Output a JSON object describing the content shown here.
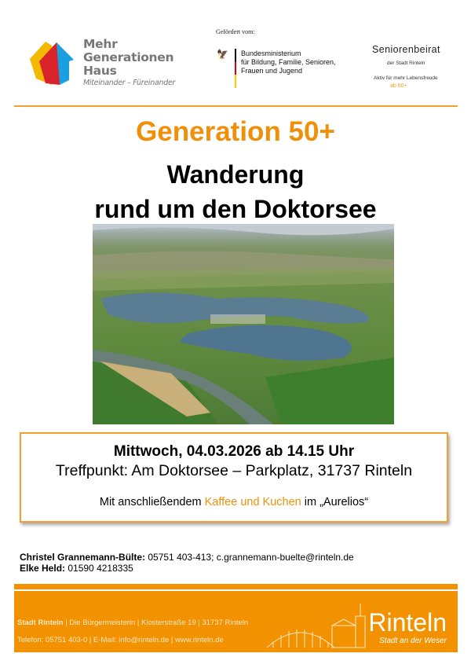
{
  "header": {
    "mgh_logo": {
      "lines": [
        "Mehr",
        "Generationen",
        "Haus"
      ],
      "tagline": "Miteinander – Füreinander"
    },
    "funded_by": "Gefördert vom:",
    "ministry": [
      "Bundesministerium",
      "für Bildung, Familie, Senioren,",
      "Frauen und Jugend"
    ],
    "seniorenbeirat": {
      "title": "Seniorenbeirat",
      "sub": "der Stadt Rinteln",
      "motto": "Aktiv für mehr Lebensfreude",
      "age": "ab 60+"
    }
  },
  "title": "Generation 50+",
  "subtitle_lines": [
    "Wanderung",
    "rund um den Doktorsee"
  ],
  "event": {
    "date": "Mittwoch, 04.03.2026 ab 14.15 Uhr",
    "meeting": "Treffpunkt: Am Doktorsee – Parkplatz, 31737 Rinteln",
    "extra_pre": "Mit anschließendem ",
    "extra_highlight": "Kaffee und Kuchen",
    "extra_post": " im „Aurelios“"
  },
  "contacts": [
    {
      "name": "Christel Grannemann-Bülte:",
      "info": " 05751 403-413; c.grannemann-buelte@rinteln.de"
    },
    {
      "name": "Elke Held:",
      "info": " 01590 4218335"
    }
  ],
  "footer": {
    "org": "Stadt Rinteln",
    "address": " | Die Bürgermeisterin | Klosterstraße 19 | 31737 Rinteln",
    "contact": "Telefon: 05751 403-0 | E-Mail: info@rinteln.de | www.rinteln.de",
    "logo": "Rinteln",
    "logo_tagline": "Stadt an der Weser"
  },
  "colors": {
    "accent": "#f39200",
    "title": "#f0900a"
  }
}
